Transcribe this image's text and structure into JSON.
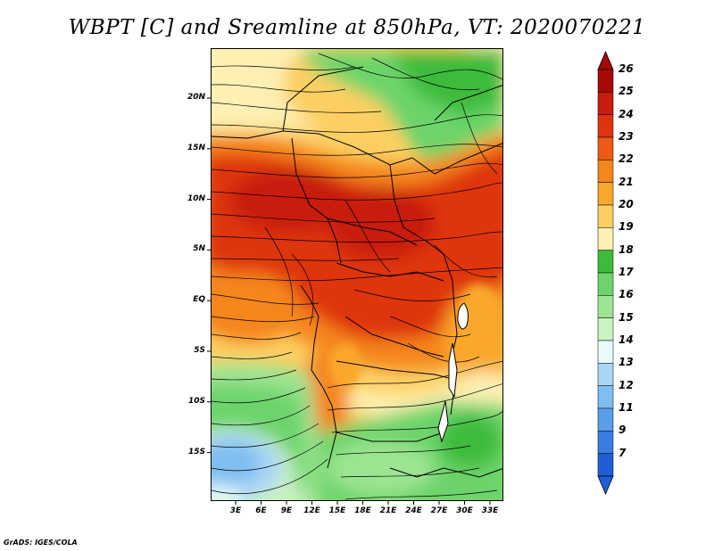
{
  "title": "WBPT [C] and Sreamline at 850hPa, VT: 2020070221",
  "credit": "GrADS: IGES/COLA",
  "map": {
    "lat_labels": [
      "20N",
      "15N",
      "10N",
      "5N",
      "EQ",
      "5S",
      "10S",
      "15S"
    ],
    "lon_labels": [
      "3E",
      "6E",
      "9E",
      "12E",
      "15E",
      "18E",
      "21E",
      "24E",
      "27E",
      "30E",
      "33E"
    ]
  },
  "colorbar": {
    "labels": [
      "26",
      "25",
      "24",
      "23",
      "22",
      "21",
      "20",
      "19",
      "18",
      "17",
      "16",
      "15",
      "14",
      "13",
      "12",
      "11",
      "9",
      "7"
    ],
    "colors": [
      "#a50a06",
      "#c81c0c",
      "#de3410",
      "#ec5a14",
      "#f5861a",
      "#fba72a",
      "#fccf62",
      "#fdf0b2",
      "#3dbb3a",
      "#6cd46a",
      "#9de493",
      "#caf2c2",
      "#e8fafa",
      "#aad6f5",
      "#7fbef0",
      "#5a9ee9",
      "#3a7de0",
      "#1f5ed5"
    ]
  }
}
